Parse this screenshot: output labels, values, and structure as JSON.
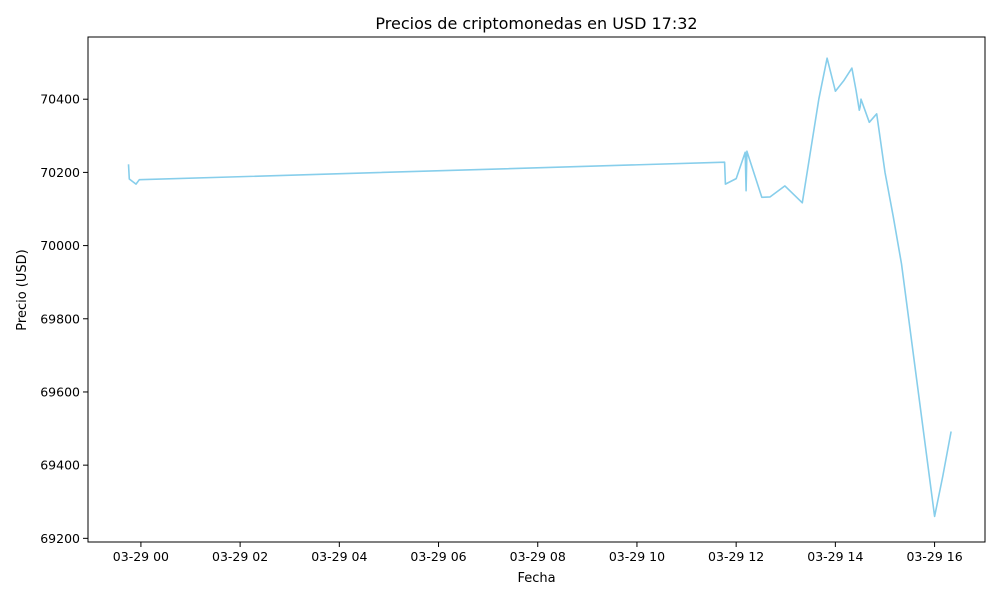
{
  "colors": {
    "line": "#87CEEB",
    "axis": "#000000",
    "background": "#ffffff"
  },
  "chart_data": {
    "type": "line",
    "title": "Precios de criptomonedas en USD 17:32",
    "xlabel": "Fecha",
    "ylabel": "Precio (USD)",
    "xlim": [
      "2024-03-28T22:56",
      "2024-03-29T17:01"
    ],
    "ylim": [
      69190,
      70570
    ],
    "grid": false,
    "legend": "none",
    "x_tick_values": [
      "2024-03-29T00:00",
      "2024-03-29T02:00",
      "2024-03-29T04:00",
      "2024-03-29T06:00",
      "2024-03-29T08:00",
      "2024-03-29T10:00",
      "2024-03-29T12:00",
      "2024-03-29T14:00",
      "2024-03-29T16:00"
    ],
    "x_tick_labels": [
      "03-29 00",
      "03-29 02",
      "03-29 04",
      "03-29 06",
      "03-29 08",
      "03-29 10",
      "03-29 12",
      "03-29 14",
      "03-29 16"
    ],
    "y_tick_values": [
      69200,
      69400,
      69600,
      69800,
      70000,
      70200,
      70400
    ],
    "y_tick_labels": [
      "69200",
      "69400",
      "69600",
      "69800",
      "70000",
      "70200",
      "70400"
    ],
    "series": [
      {
        "x": [
          "2024-03-28T23:45",
          "2024-03-28T23:46",
          "2024-03-28T23:54",
          "2024-03-28T23:58",
          "2024-03-29T11:46",
          "2024-03-29T11:47",
          "2024-03-29T12:00",
          "2024-03-29T12:11",
          "2024-03-29T12:12",
          "2024-03-29T12:13",
          "2024-03-29T12:31",
          "2024-03-29T12:41",
          "2024-03-29T12:59",
          "2024-03-29T13:20",
          "2024-03-29T13:40",
          "2024-03-29T13:50",
          "2024-03-29T14:00",
          "2024-03-29T14:10",
          "2024-03-29T14:20",
          "2024-03-29T14:25",
          "2024-03-29T14:29",
          "2024-03-29T14:30",
          "2024-03-29T14:31",
          "2024-03-29T14:41",
          "2024-03-29T14:50",
          "2024-03-29T15:00",
          "2024-03-29T15:10",
          "2024-03-29T15:20",
          "2024-03-29T16:00",
          "2024-03-29T16:10",
          "2024-03-29T16:20"
        ],
        "y": [
          70222,
          70182,
          70168,
          70180,
          70228,
          70168,
          70183,
          70255,
          70150,
          70258,
          70132,
          70133,
          70163,
          70117,
          70400,
          70512,
          70422,
          70450,
          70485,
          70425,
          70370,
          70380,
          70400,
          70337,
          70360,
          70200,
          70080,
          69950,
          69260,
          69370,
          69492
        ]
      }
    ]
  }
}
